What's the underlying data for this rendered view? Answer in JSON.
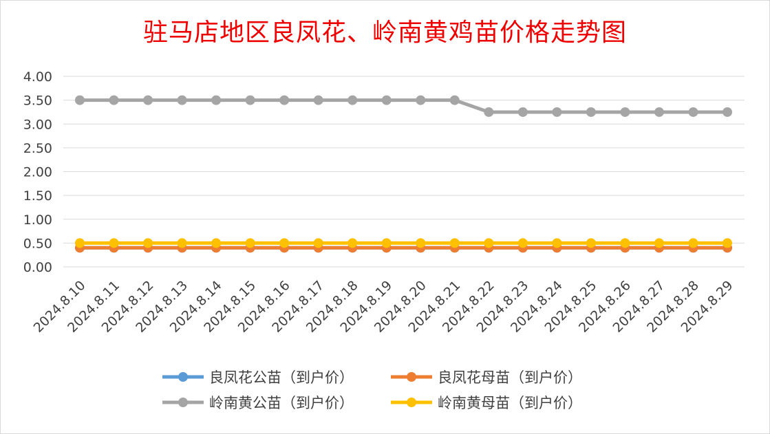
{
  "chart_data": {
    "type": "line",
    "title": "驻马店地区良凤花、岭南黄鸡苗价格走势图",
    "xlabel": "",
    "ylabel": "",
    "categories": [
      "2024.8.10",
      "2024.8.11",
      "2024.8.12",
      "2024.8.13",
      "2024.8.14",
      "2024.8.15",
      "2024.8.16",
      "2024.8.17",
      "2024.8.18",
      "2024.8.19",
      "2024.8.20",
      "2024.8.21",
      "2024.8.22",
      "2024.8.23",
      "2024.8.24",
      "2024.8.25",
      "2024.8.26",
      "2024.8.27",
      "2024.8.28",
      "2024.8.29"
    ],
    "ylim": [
      0,
      4
    ],
    "yticks": [
      "0.00",
      "0.50",
      "1.00",
      "1.50",
      "2.00",
      "2.50",
      "3.00",
      "3.50",
      "4.00"
    ],
    "grid": true,
    "legend_position": "bottom",
    "series": [
      {
        "name": "良凤花公苗（到户价）",
        "color": "#5b9bd5",
        "values": [
          0.4,
          0.4,
          0.4,
          0.4,
          0.4,
          0.4,
          0.4,
          0.4,
          0.4,
          0.4,
          0.4,
          0.4,
          0.4,
          0.4,
          0.4,
          0.4,
          0.4,
          0.4,
          0.4,
          0.4
        ]
      },
      {
        "name": "良凤花母苗（到户价）",
        "color": "#ed7d31",
        "values": [
          0.4,
          0.4,
          0.4,
          0.4,
          0.4,
          0.4,
          0.4,
          0.4,
          0.4,
          0.4,
          0.4,
          0.4,
          0.4,
          0.4,
          0.4,
          0.4,
          0.4,
          0.4,
          0.4,
          0.4
        ]
      },
      {
        "name": "岭南黄公苗（到户价）",
        "color": "#a5a5a5",
        "values": [
          3.5,
          3.5,
          3.5,
          3.5,
          3.5,
          3.5,
          3.5,
          3.5,
          3.5,
          3.5,
          3.5,
          3.5,
          3.25,
          3.25,
          3.25,
          3.25,
          3.25,
          3.25,
          3.25,
          3.25
        ]
      },
      {
        "name": "岭南黄母苗（到户价）",
        "color": "#ffc000",
        "values": [
          0.5,
          0.5,
          0.5,
          0.5,
          0.5,
          0.5,
          0.5,
          0.5,
          0.5,
          0.5,
          0.5,
          0.5,
          0.5,
          0.5,
          0.5,
          0.5,
          0.5,
          0.5,
          0.5,
          0.5
        ]
      }
    ]
  }
}
